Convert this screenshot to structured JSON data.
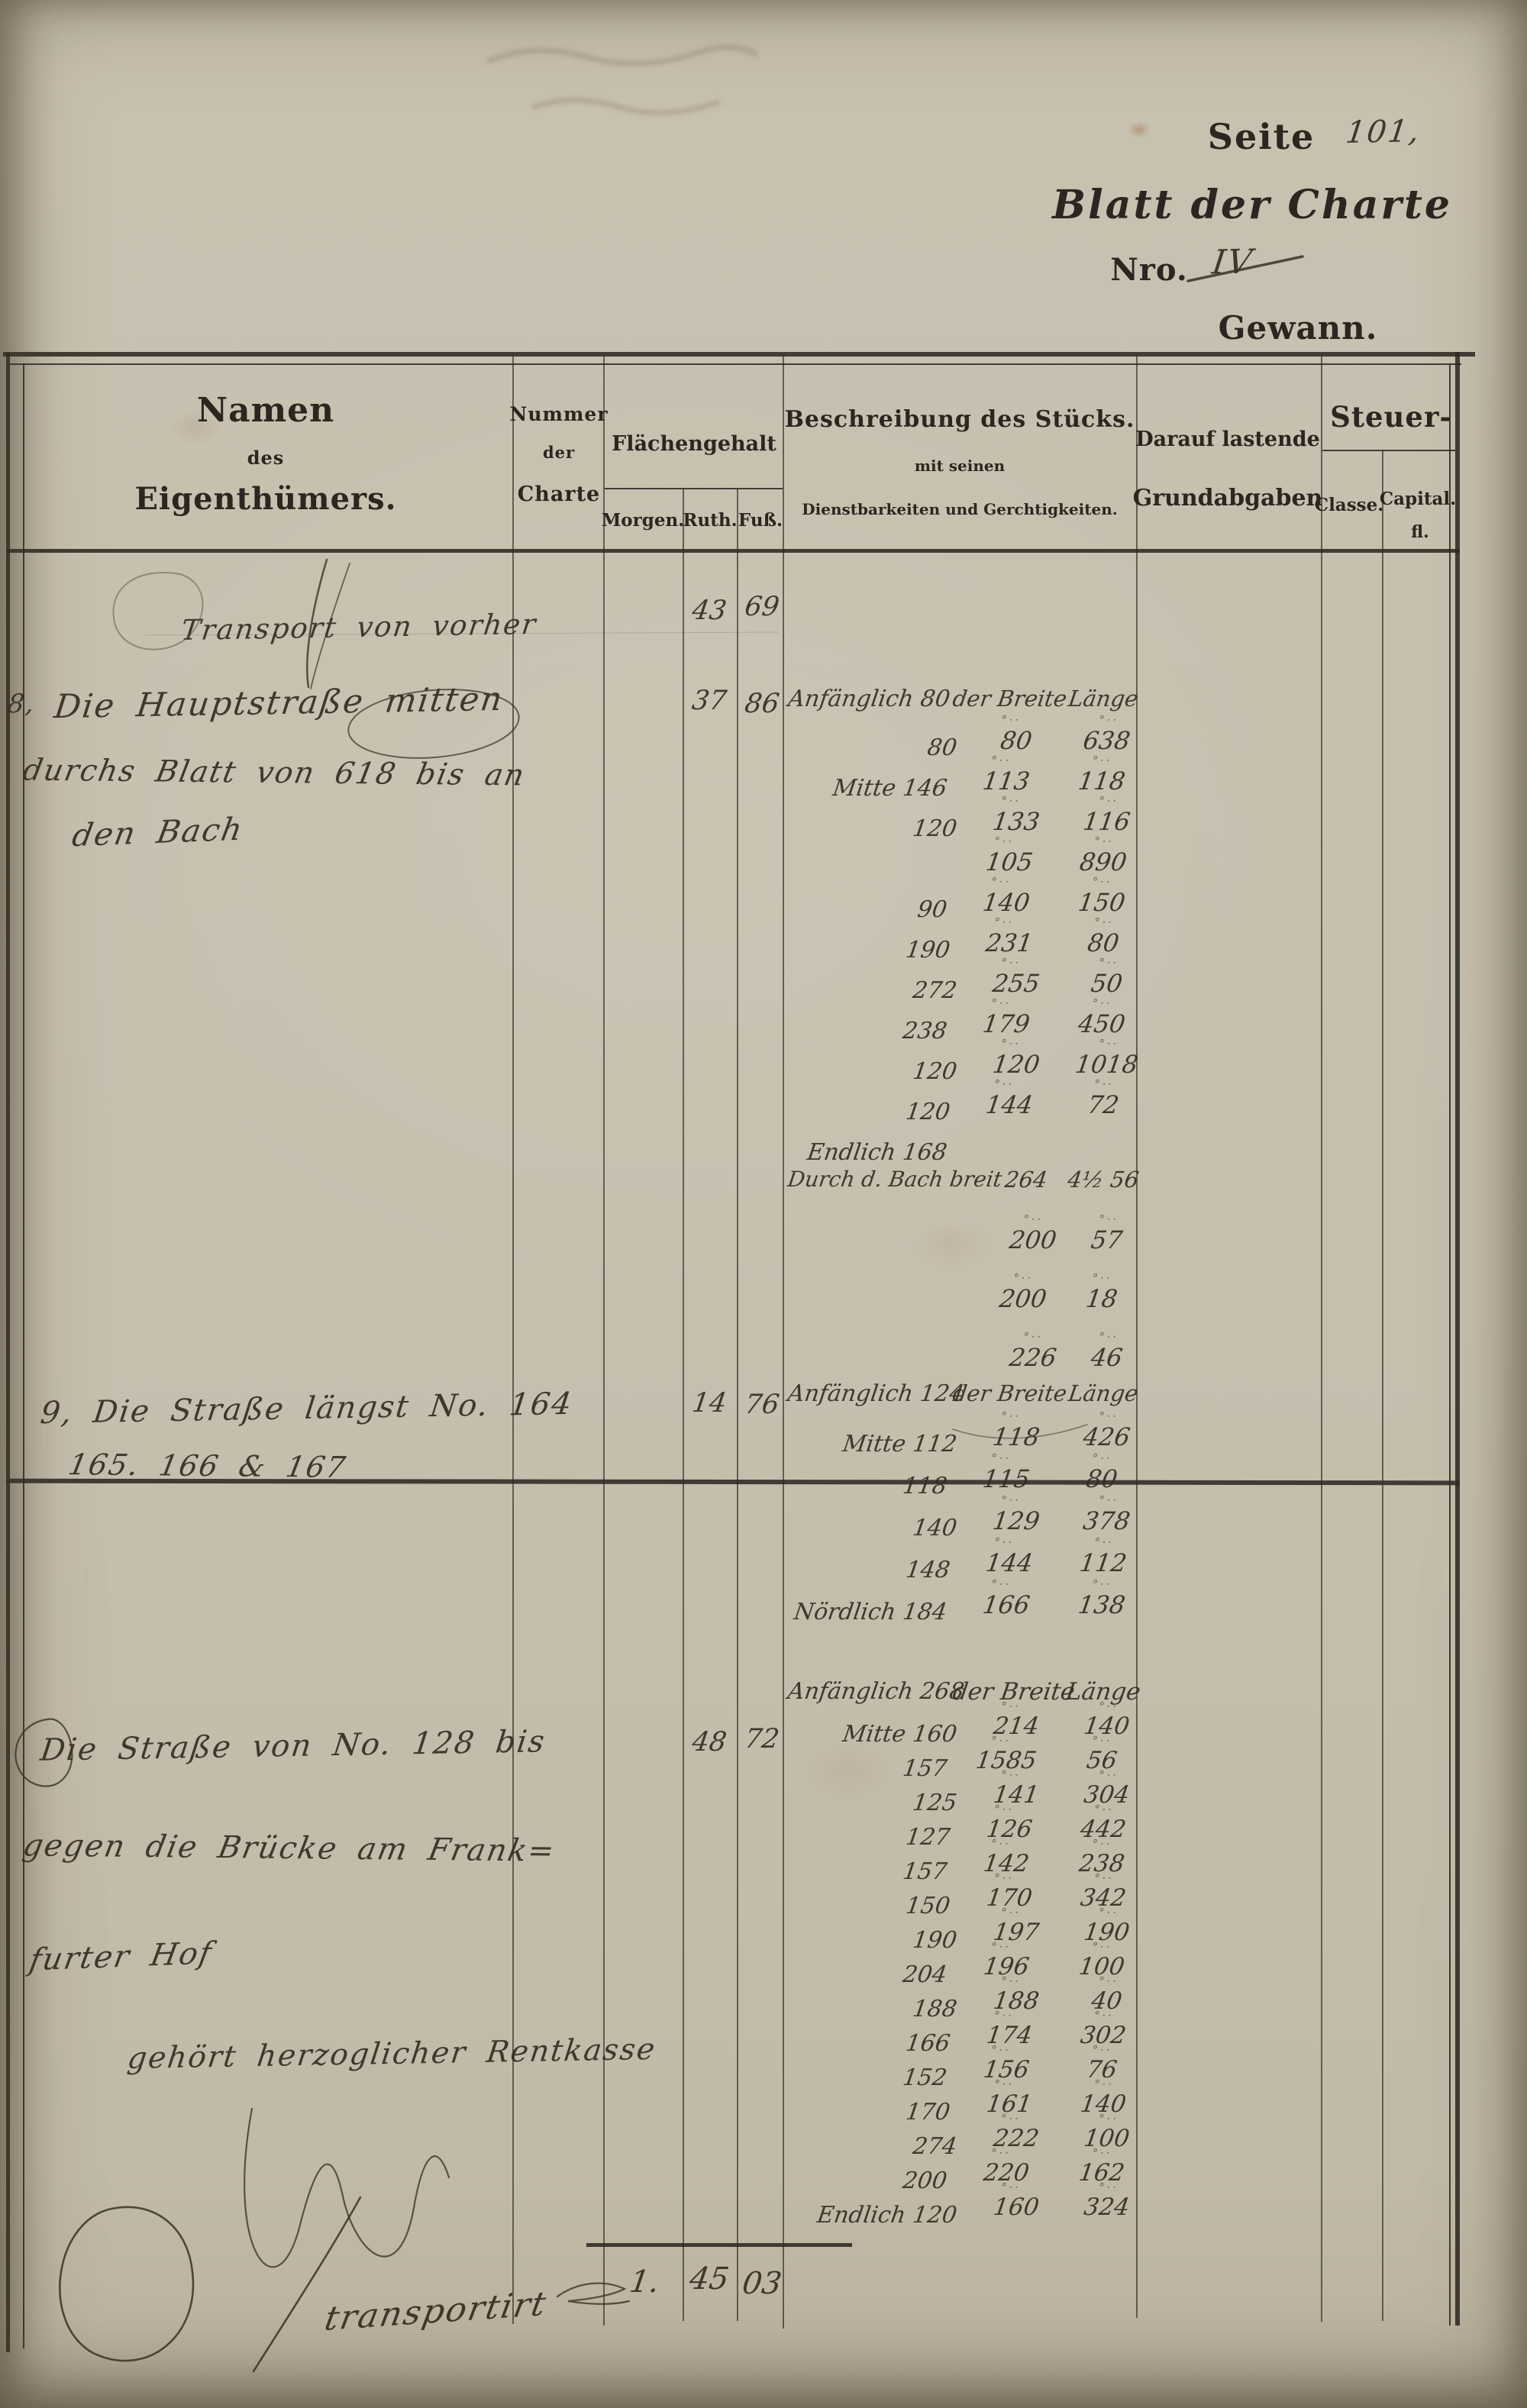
{
  "page_header": {
    "seite_label": "Seite",
    "seite_value": "101,",
    "blatt_der_charte": "Blatt der Charte",
    "nro_label": "Nro.",
    "nro_value": "IV",
    "gewann": "Gewann."
  },
  "table_header": {
    "col_namen": [
      "Namen",
      "des",
      "Eigenthümers."
    ],
    "col_nummer": [
      "Nummer",
      "der",
      "Charte"
    ],
    "flaechengehalt": "Flächengehalt",
    "sub_morgen": "Morgen.",
    "sub_ruth": "Ruth.",
    "sub_fuss": "Fuß.",
    "beschreibung": [
      "Beschreibung des Stücks.",
      "mit seinen",
      "Dienstbarkeiten und Gerchtigkeiten."
    ],
    "grundabgaben": [
      "Darauf lastende",
      "Grundabgaben"
    ],
    "steuer": "Steuer-",
    "sub_classe": "Classe.",
    "sub_capital": "Capital.",
    "sub_fl": "fl."
  },
  "rows": {
    "transport": {
      "text": "Transport von vorher",
      "ruth": "43",
      "fuss": "69"
    },
    "entry8": {
      "margin": "8,",
      "lines": [
        "Die Hauptstraße mitten",
        "durchs Blatt von 618 bis an",
        "den Bach"
      ],
      "ruth": "37",
      "fuss": "86",
      "measures": [
        [
          "Anfänglich 80",
          "der Breite",
          "Länge"
        ],
        [
          "80",
          "80",
          "638"
        ],
        [
          "Mitte 146",
          "113",
          "118"
        ],
        [
          "120",
          "133",
          "116"
        ],
        [
          "",
          "105",
          "890"
        ],
        [
          "90",
          "140",
          "150"
        ],
        [
          "190",
          "231",
          "80"
        ],
        [
          "272",
          "255",
          "50"
        ],
        [
          "238",
          "179",
          "450"
        ],
        [
          "120",
          "120",
          "1018"
        ],
        [
          "120",
          "144",
          "72"
        ],
        [
          "Endlich 168",
          "",
          ""
        ]
      ],
      "bach_rows": [
        [
          "Durch d. Bach breit",
          "264",
          "4½ 56"
        ],
        [
          "",
          "200",
          "57"
        ],
        [
          "",
          "200",
          "18"
        ],
        [
          "",
          "226",
          "46"
        ]
      ]
    },
    "entry9": {
      "lines": [
        "9, Die Straße längst No. 164",
        "165. 166 & 167"
      ],
      "ruth": "14",
      "fuss": "76",
      "measures": [
        [
          "Anfänglich 124",
          "der Breite",
          "Länge"
        ],
        [
          "Mitte 112",
          "118",
          "426"
        ],
        [
          "118",
          "115",
          "80"
        ],
        [
          "140",
          "129",
          "378"
        ],
        [
          "148",
          "144",
          "112"
        ],
        [
          "Nördlich 184",
          "166",
          "138"
        ]
      ]
    },
    "entry10": {
      "lines": [
        "Die Straße von No. 128 bis",
        "gegen die Brücke am Frank=",
        "furter Hof",
        "gehört herzoglicher Rentkasse"
      ],
      "ruth": "48",
      "fuss": "72",
      "measures": [
        [
          "Anfänglich 268",
          "der Breite",
          "Länge"
        ],
        [
          "Mitte 160",
          "214",
          "140"
        ],
        [
          "157",
          "1585",
          "56"
        ],
        [
          "125",
          "141",
          "304"
        ],
        [
          "127",
          "126",
          "442"
        ],
        [
          "157",
          "142",
          "238"
        ],
        [
          "150",
          "170",
          "342"
        ],
        [
          "190",
          "197",
          "190"
        ],
        [
          "204",
          "196",
          "100"
        ],
        [
          "188",
          "188",
          "40"
        ],
        [
          "166",
          "174",
          "302"
        ],
        [
          "152",
          "156",
          "76"
        ],
        [
          "170",
          "161",
          "140"
        ],
        [
          "274",
          "222",
          "100"
        ],
        [
          "200",
          "220",
          "162"
        ],
        [
          "Endlich 120",
          "160",
          "324"
        ]
      ]
    },
    "total": {
      "label": "transportirt",
      "morgen": "1.",
      "ruth": "45",
      "fuss": "03"
    }
  },
  "colors": {
    "paper": "#c7bfae",
    "ink": "#342d21",
    "rule": "#2d2a22"
  }
}
